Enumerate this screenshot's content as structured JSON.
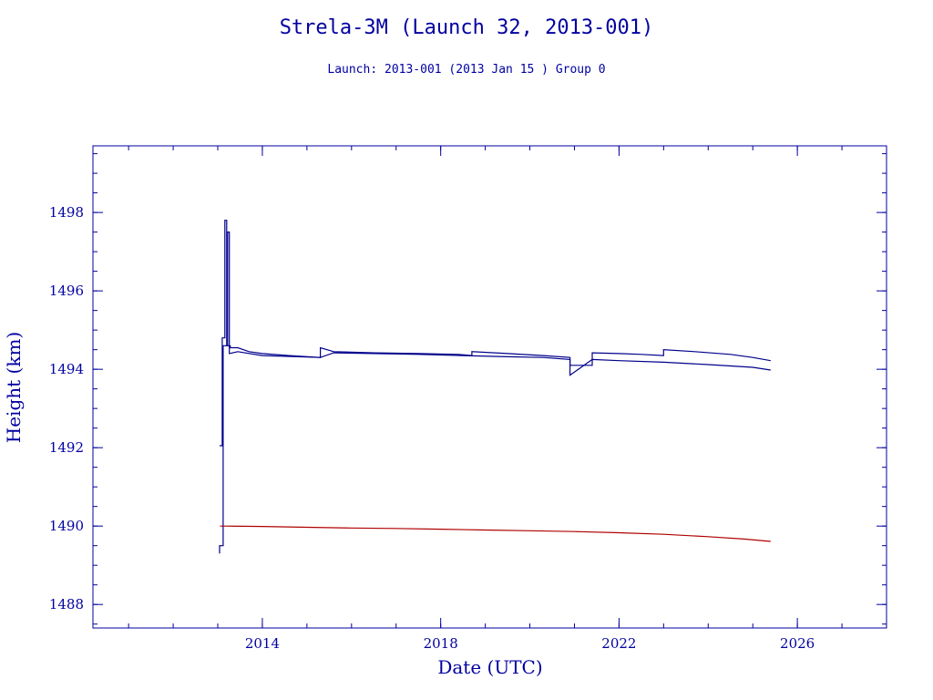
{
  "chart_data": {
    "type": "line",
    "title": "Strela-3M (Launch 32, 2013-001)",
    "subtitle": "Launch: 2013-001  (2013 Jan 15 )  Group 0",
    "xlabel": "Date (UTC)",
    "ylabel": "Height (km)",
    "xlim": [
      2010.2,
      2028.0
    ],
    "ylim": [
      1487.4,
      1499.7
    ],
    "xticks": [
      2014,
      2018,
      2022,
      2026
    ],
    "yticks": [
      1488,
      1490,
      1492,
      1494,
      1496,
      1498
    ],
    "grid": false,
    "colors": {
      "axes": "#0000a0",
      "apogee": "#00008b",
      "perigee": "#b00000"
    },
    "series": [
      {
        "key": "apogee",
        "color": "#00008b",
        "x": [
          2013.04,
          2013.1,
          2013.1,
          2013.16,
          2013.16,
          2013.2,
          2013.2,
          2013.28,
          2013.28,
          2013.45,
          2013.7,
          2014.0,
          2014.6,
          2015.3,
          2015.3,
          2015.6,
          2016.5,
          2017.5,
          2018.4,
          2018.7,
          2018.7,
          2019.5,
          2020.3,
          2020.9,
          2020.9,
          2021.4,
          2021.4,
          2022.0,
          2022.5,
          2023.0,
          2023.0,
          2023.7,
          2024.5,
          2025.0,
          2025.4
        ],
        "y": [
          1492.05,
          1492.05,
          1494.8,
          1494.8,
          1497.8,
          1497.8,
          1494.6,
          1494.6,
          1494.55,
          1494.55,
          1494.45,
          1494.4,
          1494.35,
          1494.3,
          1494.55,
          1494.45,
          1494.42,
          1494.4,
          1494.38,
          1494.35,
          1494.45,
          1494.4,
          1494.35,
          1494.3,
          1494.1,
          1494.1,
          1494.42,
          1494.4,
          1494.38,
          1494.35,
          1494.5,
          1494.45,
          1494.38,
          1494.3,
          1494.22
        ]
      },
      {
        "key": "apogee-secondary",
        "color": "#00008b",
        "x": [
          2013.04,
          2013.04,
          2013.12,
          2013.12,
          2013.22,
          2013.22,
          2013.26,
          2013.26,
          2013.45,
          2014.0,
          2015.3,
          2015.6,
          2016.5,
          2017.5,
          2018.5,
          2019.5,
          2020.3,
          2020.9,
          2020.9,
          2021.4,
          2022.0,
          2023.0,
          2024.0,
          2025.0,
          2025.4
        ],
        "y": [
          1489.3,
          1489.5,
          1489.5,
          1494.6,
          1494.6,
          1497.5,
          1497.5,
          1494.4,
          1494.45,
          1494.35,
          1494.3,
          1494.42,
          1494.4,
          1494.38,
          1494.35,
          1494.32,
          1494.3,
          1494.25,
          1493.85,
          1494.25,
          1494.22,
          1494.18,
          1494.12,
          1494.05,
          1493.98
        ]
      },
      {
        "key": "perigee",
        "color": "#b00000",
        "x": [
          2013.05,
          2013.2,
          2014.0,
          2015.0,
          2016.0,
          2017.0,
          2018.0,
          2019.0,
          2020.0,
          2021.0,
          2022.0,
          2023.0,
          2024.0,
          2024.8,
          2025.4
        ],
        "y": [
          1490.0,
          1490.0,
          1489.99,
          1489.97,
          1489.95,
          1489.94,
          1489.92,
          1489.9,
          1489.88,
          1489.86,
          1489.83,
          1489.79,
          1489.73,
          1489.67,
          1489.61
        ]
      }
    ]
  }
}
